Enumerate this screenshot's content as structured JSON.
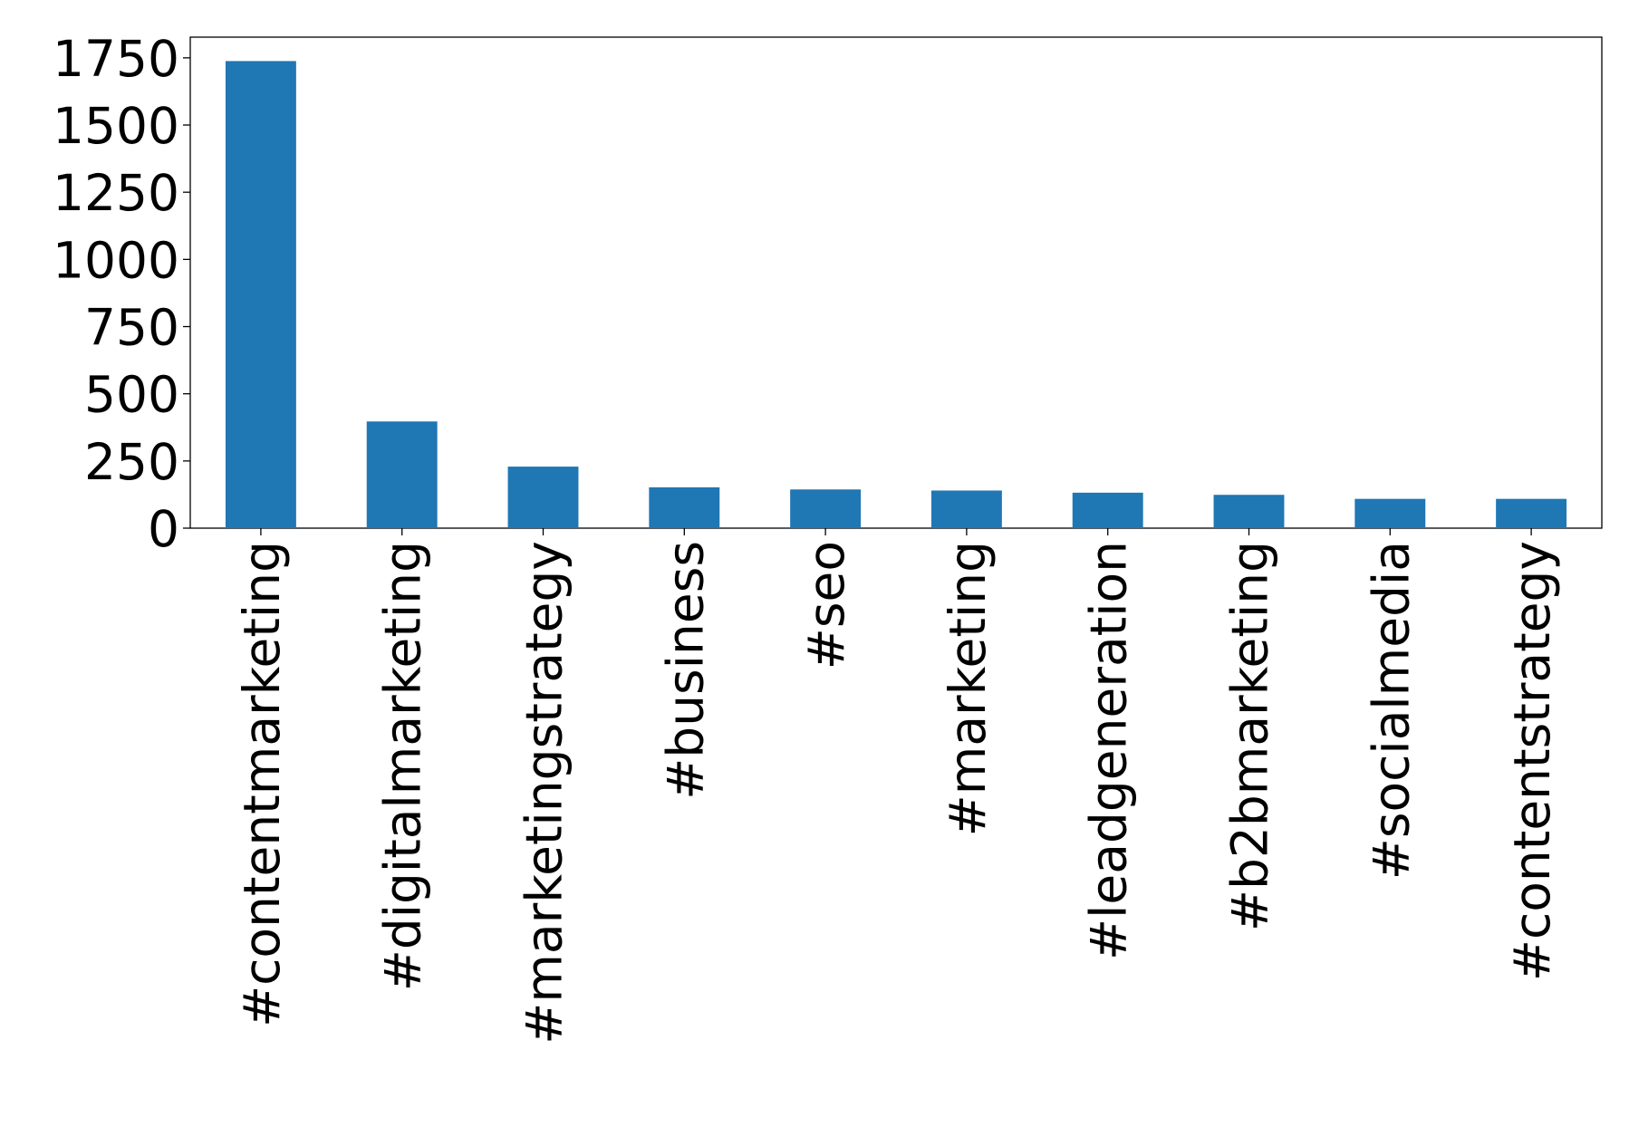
{
  "chart_data": {
    "type": "bar",
    "categories": [
      "#contentmarketing",
      "#digitalmarketing",
      "#marketingstrategy",
      "#business",
      "#seo",
      "#marketing",
      "#leadgeneration",
      "#b2bmarketing",
      "#socialmedia",
      "#contentstrategy"
    ],
    "values": [
      1738,
      397,
      229,
      152,
      144,
      140,
      132,
      124,
      109,
      109
    ],
    "color": "#1f77b4",
    "ylim": [
      0,
      1827
    ],
    "yticks": [
      0,
      250,
      500,
      750,
      1000,
      1250,
      1500,
      1750
    ],
    "grid": false
  }
}
